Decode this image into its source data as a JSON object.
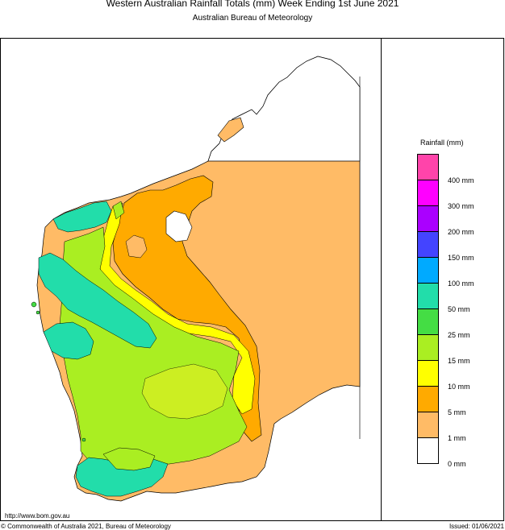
{
  "title": "Western Australian Rainfall Totals (mm)  Week Ending 1st June 2021",
  "subtitle": "Australian Bureau of Meteorology",
  "legend": {
    "title": "Rainfall (mm)",
    "bands": [
      {
        "color": "#ff44aa"
      },
      {
        "color": "#ff00ff"
      },
      {
        "color": "#aa00ff"
      },
      {
        "color": "#4444ff"
      },
      {
        "color": "#00aaff"
      },
      {
        "color": "#22ddaa"
      },
      {
        "color": "#44dd44"
      },
      {
        "color": "#aaee22"
      },
      {
        "color": "#ffff00"
      },
      {
        "color": "#ffaa00"
      },
      {
        "color": "#ffbb66"
      },
      {
        "color": "#ffffff"
      }
    ],
    "labels": [
      "400 mm",
      "300 mm",
      "200 mm",
      "150 mm",
      "100 mm",
      "50 mm",
      "25 mm",
      "15 mm",
      "10 mm",
      "5 mm",
      "1 mm",
      "0 mm"
    ]
  },
  "footer": {
    "url": "http://www.bom.gov.au",
    "copyright": "© Commonwealth of Australia 2021, Bureau of Meteorology",
    "issued": "Issued: 01/06/2021"
  }
}
